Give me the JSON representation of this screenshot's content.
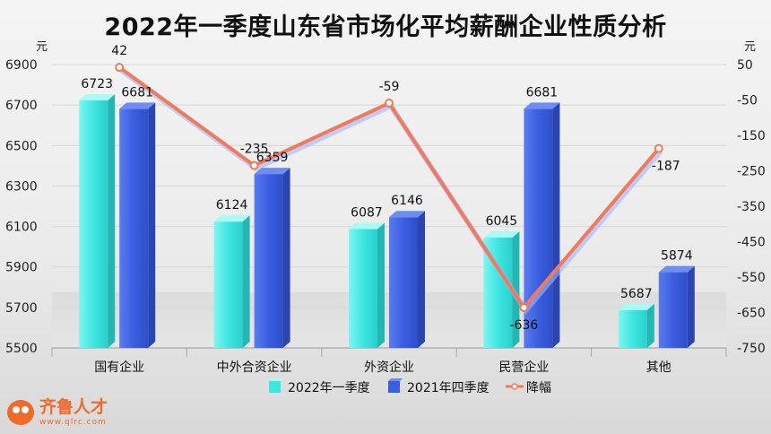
{
  "title": "2022年一季度山东省市场化平均薪酬企业性质分析",
  "logo": {
    "name": "齐鲁人才",
    "url": "www.qlrc.com"
  },
  "chart_data": {
    "type": "bar",
    "categories": [
      "国有企业",
      "中外合资企业",
      "外资企业",
      "民营企业",
      "其他"
    ],
    "series": [
      {
        "name": "2022年一季度",
        "type": "bar",
        "axis": "left",
        "color": "#3ee6e0",
        "values": [
          6723,
          6124,
          6087,
          6045,
          5687
        ]
      },
      {
        "name": "2021年四季度",
        "type": "bar",
        "axis": "left",
        "color": "#3a5ee0",
        "values": [
          6681,
          6359,
          6146,
          6681,
          5874
        ]
      },
      {
        "name": "降幅",
        "type": "line",
        "axis": "right",
        "color": "#f07a5a",
        "values": [
          42,
          -235,
          -59,
          -636,
          -187
        ]
      }
    ],
    "y_left": {
      "unit": "元",
      "min": 5500,
      "max": 6900,
      "ticks": [
        5500,
        5700,
        5900,
        6100,
        6300,
        6500,
        6700,
        6900
      ]
    },
    "y_right": {
      "unit": "元",
      "min": -750,
      "max": 50,
      "ticks": [
        50,
        -50,
        -150,
        -250,
        -350,
        -450,
        -550,
        -650,
        -750
      ]
    },
    "grid": true,
    "legend_position": "bottom"
  }
}
